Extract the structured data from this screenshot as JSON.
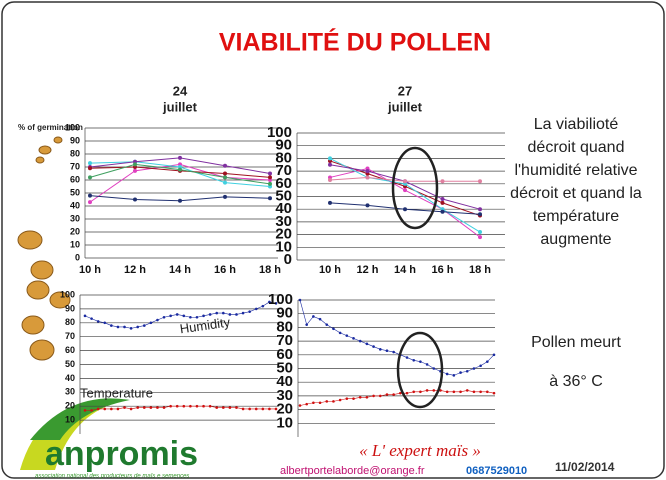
{
  "header": {
    "title": "VIABILITÉ DU POLLEN"
  },
  "note": [
    "La viabilioté",
    "décroit quand",
    "l'humidité relative",
    "décroit et quand la",
    "température",
    "augmente"
  ],
  "note2": [
    "Pollen meurt",
    "à 36° C"
  ],
  "footer": {
    "slogan": "« L' expert maïs »",
    "logo": "anpromis",
    "logo_sub": "association national des producteurs de maïs e semences",
    "email": "albertportelaborde@orange.fr",
    "phone": "0687529010",
    "date": "11/02/2014"
  },
  "chart_data": [
    {
      "type": "line",
      "title": [
        "24",
        "juillet"
      ],
      "y_label": "% of germination",
      "categories": [
        "10 h",
        "12 h",
        "14 h",
        "16 h",
        "18 h"
      ],
      "ylim": [
        0,
        100
      ],
      "yticks": [
        0,
        10,
        20,
        30,
        40,
        50,
        60,
        70,
        80,
        90,
        100
      ],
      "grid": true,
      "series": [
        {
          "color": "#e040c0",
          "values": [
            43,
            67,
            72,
            62,
            60
          ]
        },
        {
          "color": "#40d0e0",
          "values": [
            73,
            74,
            70,
            58,
            55
          ]
        },
        {
          "color": "#8030a0",
          "values": [
            70,
            74,
            77,
            71,
            65
          ]
        },
        {
          "color": "#a01020",
          "values": [
            69,
            70,
            67,
            65,
            62
          ]
        },
        {
          "color": "#203070",
          "values": [
            48,
            45,
            44,
            47,
            46
          ]
        },
        {
          "color": "#40a060",
          "values": [
            62,
            72,
            68,
            62,
            57
          ]
        }
      ]
    },
    {
      "type": "line",
      "title": [
        "27",
        "juillet"
      ],
      "categories": [
        "10 h",
        "12 h",
        "14 h",
        "16 h",
        "18 h"
      ],
      "ylim": [
        0,
        100
      ],
      "yticks": [
        0,
        10,
        20,
        30,
        40,
        50,
        60,
        70,
        80,
        90,
        100
      ],
      "grid": true,
      "series": [
        {
          "color": "#a01020",
          "values": [
            78,
            68,
            58,
            45,
            35
          ]
        },
        {
          "color": "#e040c0",
          "values": [
            65,
            72,
            55,
            40,
            18
          ]
        },
        {
          "color": "#40d0e0",
          "values": [
            80,
            65,
            60,
            40,
            22
          ]
        },
        {
          "color": "#203070",
          "values": [
            45,
            43,
            40,
            38,
            36
          ]
        },
        {
          "color": "#8030a0",
          "values": [
            75,
            70,
            62,
            48,
            40
          ]
        },
        {
          "color": "#e080a0",
          "values": [
            63,
            65,
            62,
            62,
            62
          ]
        }
      ]
    },
    {
      "type": "line",
      "categories": [
        null,
        null,
        null,
        null,
        null,
        null,
        null,
        null,
        null,
        null,
        null,
        null,
        null,
        null,
        null,
        null,
        null,
        null,
        null,
        null,
        null,
        null,
        null,
        null,
        null,
        null,
        null,
        null,
        null,
        null
      ],
      "ylim": [
        0,
        100
      ],
      "yticks": [
        10,
        20,
        30,
        40,
        50,
        60,
        70,
        80,
        90,
        100
      ],
      "grid": true,
      "series": [
        {
          "name": "Humidity",
          "color": "#1a2aa0",
          "values": [
            85,
            83,
            81,
            80,
            78,
            77,
            77,
            76,
            77,
            78,
            80,
            82,
            84,
            85,
            86,
            85,
            84,
            84,
            85,
            86,
            87,
            87,
            86,
            86,
            87,
            88,
            90,
            92,
            95,
            94
          ]
        },
        {
          "name": "Temperature",
          "color": "#d01010",
          "values": [
            17,
            17,
            18,
            18,
            18,
            18,
            19,
            18,
            19,
            19,
            19,
            19,
            19,
            20,
            20,
            20,
            20,
            20,
            20,
            20,
            19,
            19,
            19,
            19,
            18,
            18,
            18,
            18,
            18,
            18
          ]
        }
      ]
    },
    {
      "type": "line",
      "categories": [
        null,
        null,
        null,
        null,
        null,
        null,
        null,
        null,
        null,
        null,
        null,
        null,
        null,
        null,
        null,
        null,
        null,
        null,
        null,
        null,
        null,
        null,
        null,
        null,
        null,
        null,
        null,
        null,
        null,
        null
      ],
      "ylim": [
        0,
        100
      ],
      "yticks": [
        10,
        20,
        30,
        40,
        50,
        60,
        70,
        80,
        90,
        100
      ],
      "grid": true,
      "series": [
        {
          "color": "#1a2aa0",
          "values": [
            100,
            82,
            88,
            86,
            82,
            79,
            76,
            74,
            72,
            70,
            68,
            66,
            64,
            63,
            62,
            60,
            58,
            56,
            55,
            53,
            50,
            48,
            46,
            45,
            47,
            48,
            50,
            52,
            55,
            60
          ]
        },
        {
          "color": "#d01010",
          "values": [
            23,
            24,
            25,
            25,
            26,
            26,
            27,
            28,
            28,
            29,
            29,
            30,
            30,
            31,
            31,
            32,
            32,
            33,
            33,
            34,
            34,
            34,
            33,
            33,
            33,
            34,
            33,
            33,
            33,
            32
          ]
        }
      ]
    }
  ]
}
